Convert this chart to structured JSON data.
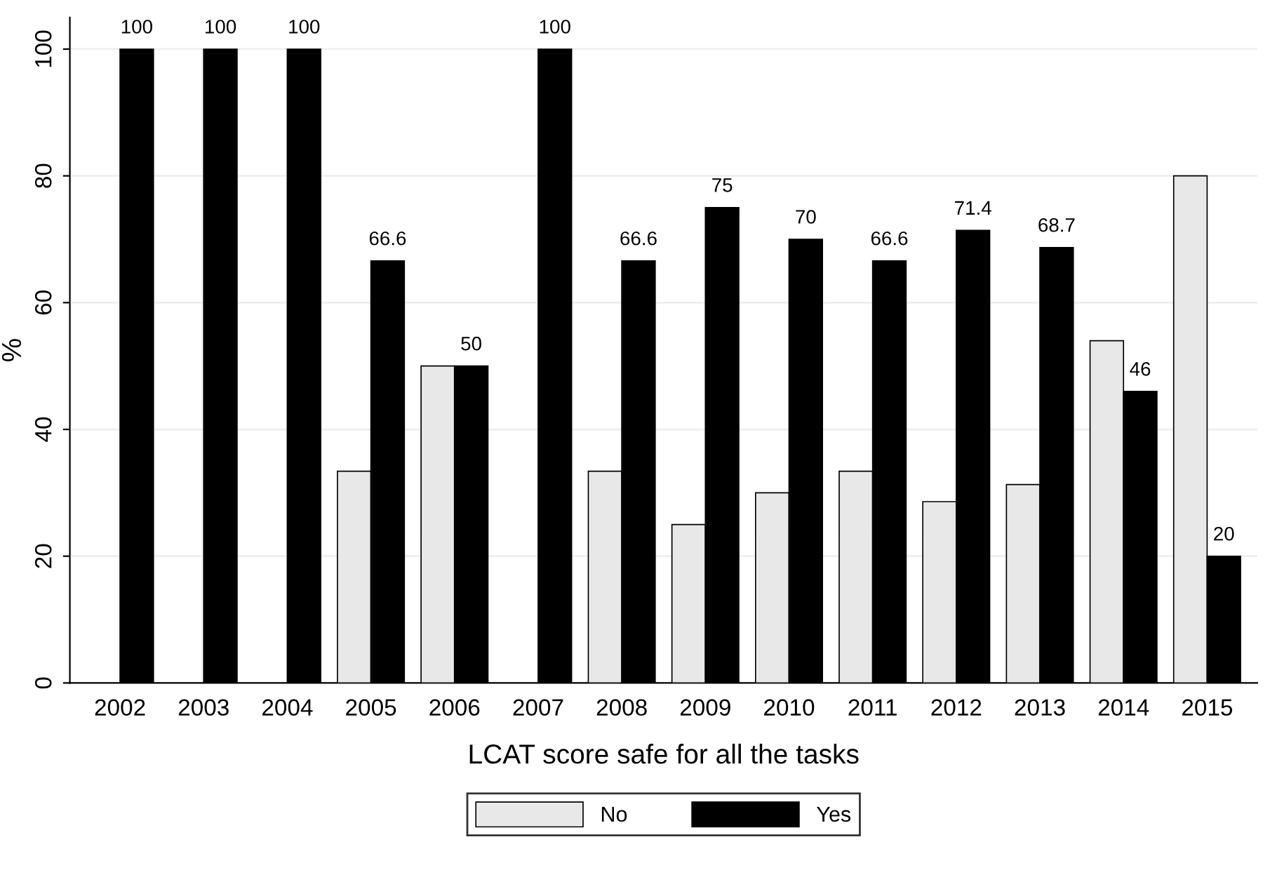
{
  "chart_data": {
    "type": "bar",
    "xlabel": "LCAT score safe for all the tasks",
    "ylabel": "%",
    "categories": [
      "2002",
      "2003",
      "2004",
      "2005",
      "2006",
      "2007",
      "2008",
      "2009",
      "2010",
      "2011",
      "2012",
      "2013",
      "2014",
      "2015"
    ],
    "series": [
      {
        "name": "No",
        "color": "#e8e8e8",
        "values": [
          null,
          null,
          null,
          33.4,
          50,
          null,
          33.4,
          25,
          30,
          33.4,
          28.6,
          31.3,
          54,
          80
        ]
      },
      {
        "name": "Yes",
        "color": "#000000",
        "values": [
          100,
          100,
          100,
          66.6,
          50,
          100,
          66.6,
          75,
          70,
          66.6,
          71.4,
          68.7,
          46,
          20
        ],
        "value_labels": [
          "100",
          "100",
          "100",
          "66.6",
          "50",
          "100",
          "66.6",
          "75",
          "70",
          "66.6",
          "71.4",
          "68.7",
          "46",
          "20"
        ]
      }
    ],
    "ylim": [
      0,
      105
    ],
    "yticks": [
      0,
      20,
      40,
      60,
      80,
      100
    ],
    "grid": "y",
    "legend": "bottom"
  }
}
